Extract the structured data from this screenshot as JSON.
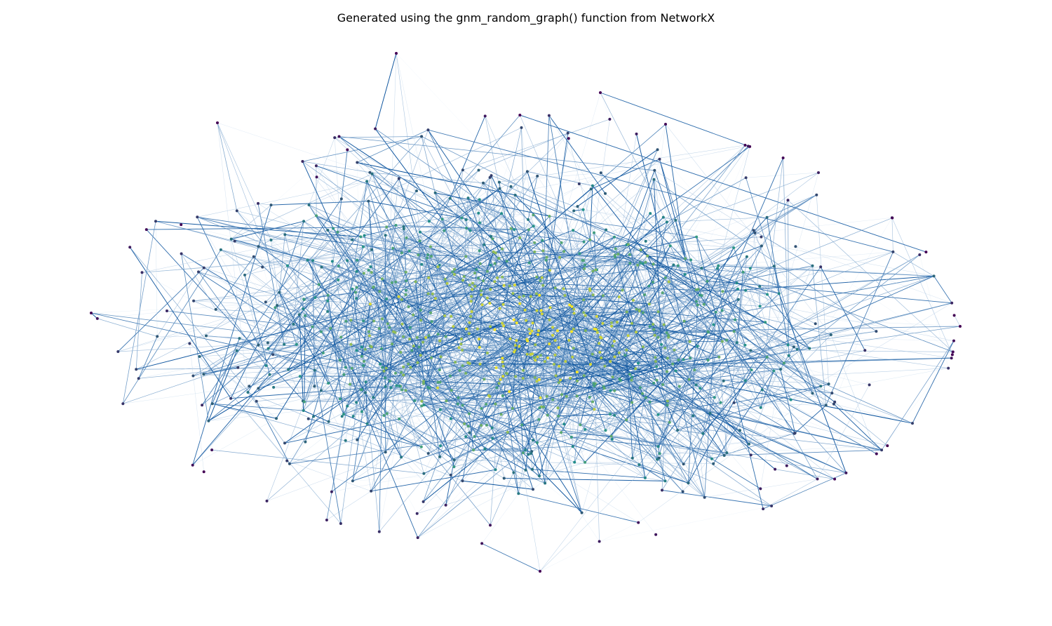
{
  "title": "Generated using the gnm_random_graph() function from NetworkX",
  "graph": {
    "generator": "gnm_random_graph",
    "layout": "spring",
    "node_colormap": "viridis",
    "edge_colormap": "Blues",
    "node_color_low": "#440154",
    "node_color_mid": "#21918c",
    "node_color_high": "#fde725",
    "edge_color_light": "#deebf7",
    "edge_color_dark": "#08519c",
    "axis_visible": false
  }
}
